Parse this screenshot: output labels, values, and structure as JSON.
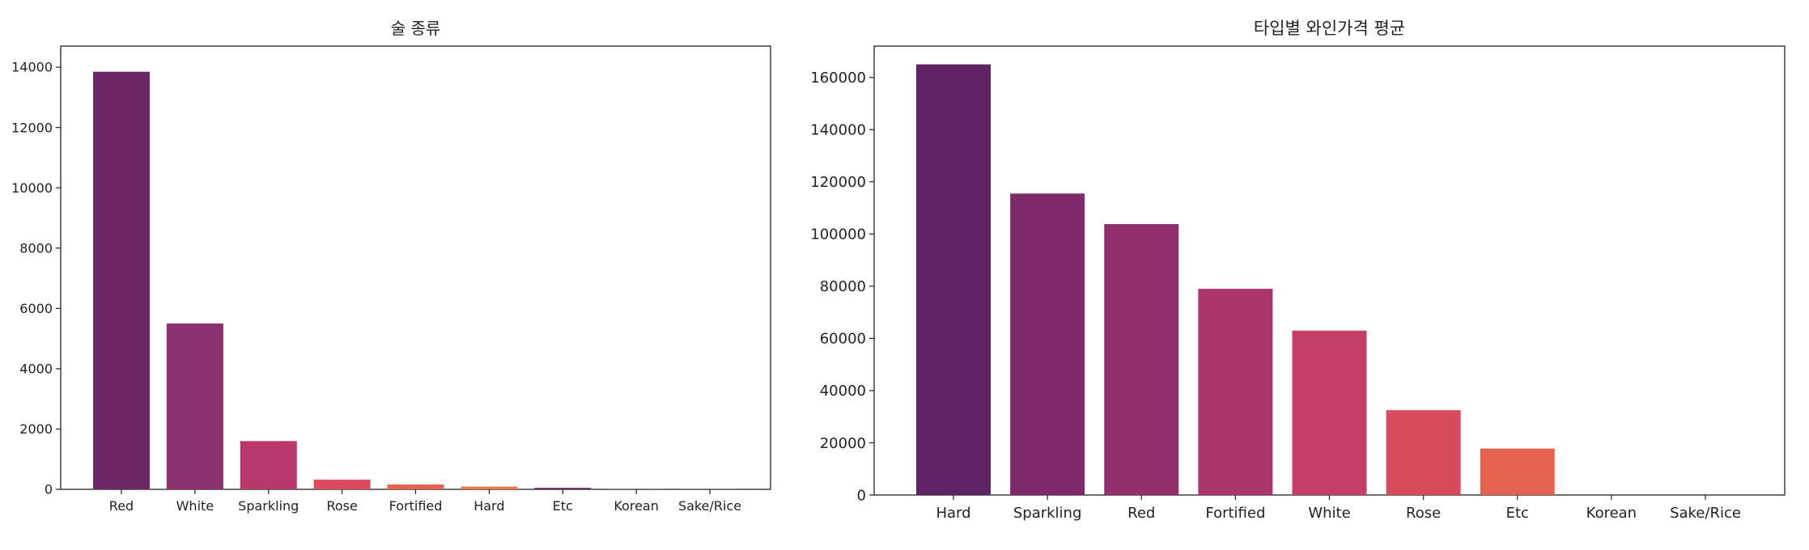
{
  "chart_data": [
    {
      "type": "bar",
      "title": "술 종류",
      "xlabel": "",
      "ylabel": "",
      "categories": [
        "Red",
        "White",
        "Sparkling",
        "Rose",
        "Fortified",
        "Hard",
        "Etc",
        "Korean",
        "Sake/Rice"
      ],
      "values": [
        13850,
        5500,
        1600,
        320,
        160,
        90,
        50,
        10,
        5
      ],
      "ylim": [
        0,
        14700
      ],
      "yticks": [
        0,
        2000,
        4000,
        6000,
        8000,
        10000,
        12000,
        14000
      ],
      "colors": [
        "#6c2866",
        "#8c2f6d",
        "#b83869",
        "#d84a5c",
        "#e76050",
        "#ec7350",
        "#6c2866",
        "#8c2f6d",
        "#b83869"
      ],
      "grid": false
    },
    {
      "type": "bar",
      "title": "타입별 와인가격 평균",
      "xlabel": "",
      "ylabel": "",
      "categories": [
        "Hard",
        "Sparkling",
        "Red",
        "Fortified",
        "White",
        "Rose",
        "Etc",
        "Korean",
        "Sake/Rice"
      ],
      "values": [
        165000,
        115500,
        103800,
        79000,
        63000,
        32500,
        17800,
        0,
        0
      ],
      "ylim": [
        0,
        172000
      ],
      "yticks": [
        0,
        20000,
        40000,
        60000,
        80000,
        100000,
        120000,
        140000,
        160000
      ],
      "colors": [
        "#5f2463",
        "#7c2a6a",
        "#922f6d",
        "#ab346b",
        "#c33f66",
        "#d84b5d",
        "#e4614f",
        "#e8704d",
        "#ec804f"
      ],
      "grid": false
    }
  ]
}
